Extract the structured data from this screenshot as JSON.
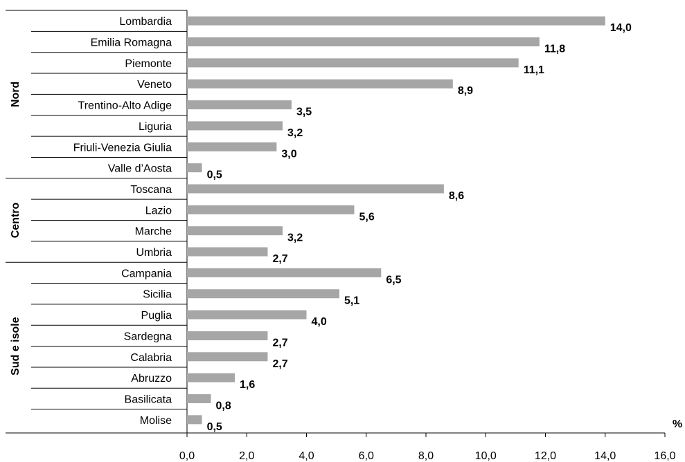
{
  "chart_data": {
    "type": "bar",
    "orientation": "horizontal",
    "title": "",
    "xlabel": "%",
    "ylabel": "",
    "xlim": [
      0,
      16
    ],
    "x_ticks": [
      "0,0",
      "2,0",
      "4,0",
      "6,0",
      "8,0",
      "10,0",
      "12,0",
      "14,0",
      "16,0"
    ],
    "bar_color": "#a6a6a6",
    "grid": false,
    "groups": [
      {
        "name": "Nord",
        "start": 0,
        "end": 7
      },
      {
        "name": "Centro",
        "start": 8,
        "end": 11
      },
      {
        "name": "Sud e isole",
        "start": 12,
        "end": 19
      }
    ],
    "categories": [
      "Lombardia",
      "Emilia Romagna",
      "Piemonte",
      "Veneto",
      "Trentino-Alto Adige",
      "Liguria",
      "Friuli-Venezia Giulia",
      "Valle d’Aosta",
      "Toscana",
      "Lazio",
      "Marche",
      "Umbria",
      "Campania",
      "Sicilia",
      "Puglia",
      "Sardegna",
      "Calabria",
      "Abruzzo",
      "Basilicata",
      "Molise"
    ],
    "values": [
      14.0,
      11.8,
      11.1,
      8.9,
      3.5,
      3.2,
      3.0,
      0.5,
      8.6,
      5.6,
      3.2,
      2.7,
      6.5,
      5.1,
      4.0,
      2.7,
      2.7,
      1.6,
      0.8,
      0.5
    ],
    "value_labels": [
      "14,0",
      "11,8",
      "11,1",
      "8,9",
      "3,5",
      "3,2",
      "3,0",
      "0,5",
      "8,6",
      "5,6",
      "3,2",
      "2,7",
      "6,5",
      "5,1",
      "4,0",
      "2,7",
      "2,7",
      "1,6",
      "0,8",
      "0,5"
    ]
  }
}
